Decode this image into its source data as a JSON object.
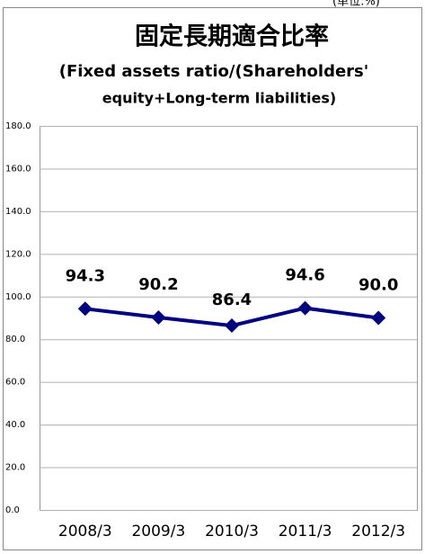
{
  "chart_data": {
    "type": "line",
    "title": "固定長期適合比率",
    "subtitle": [
      "(Fixed assets ratio/(Shareholders'",
      "equity+Long-term liabilities)"
    ],
    "unit_note": "(単位:%)",
    "categories": [
      "2008/3",
      "2009/3",
      "2010/3",
      "2011/3",
      "2012/3"
    ],
    "series": [
      {
        "color": "#000080",
        "values": [
          94.3,
          90.2,
          86.4,
          94.6,
          90.0
        ],
        "value_labels": [
          "94.3",
          "90.2",
          "86.4",
          "94.6",
          "90.0"
        ]
      }
    ],
    "ylim": [
      0,
      180
    ],
    "yticks": [
      {
        "value": 0,
        "label": "0.0"
      },
      {
        "value": 20,
        "label": "20.0"
      },
      {
        "value": 40,
        "label": "40.0"
      },
      {
        "value": 60,
        "label": "60.0"
      },
      {
        "value": 80,
        "label": "80.0"
      },
      {
        "value": 100,
        "label": "100.0"
      },
      {
        "value": 120,
        "label": "120.0"
      },
      {
        "value": 140,
        "label": "140.0"
      },
      {
        "value": 160,
        "label": "160.0"
      },
      {
        "value": 180,
        "label": "180.0"
      }
    ],
    "grid": true
  }
}
